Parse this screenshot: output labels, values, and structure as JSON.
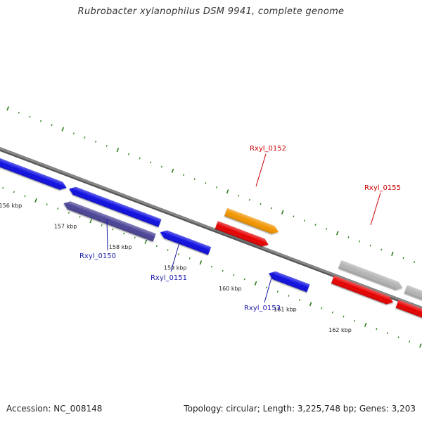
{
  "title": "Rubrobacter xylanophilus DSM 9941, complete genome",
  "footer": {
    "accession": "Accession: NC_008148",
    "topology": "Topology: circular; Length: 3,225,748 bp; Genes: 3,203"
  },
  "colors": {
    "backbone": "#888888",
    "tick_major": "#2e7d1e",
    "tick_minor": "#2e7d1e",
    "gene_blue": "#1010e0",
    "gene_purple": "#4b4496",
    "gene_orange": "#f29400",
    "gene_red": "#e60000",
    "gene_gray": "#b4b4b4",
    "label_blue": "#1a1aa8",
    "label_red": "#cc0000"
  },
  "scale": {
    "unit": "kbp",
    "tick_labels": [
      {
        "kbp": 156,
        "text": "156 kbp"
      },
      {
        "kbp": 157,
        "text": "157 kbp"
      },
      {
        "kbp": 158,
        "text": "158 kbp"
      },
      {
        "kbp": 159,
        "text": "159 kbp"
      },
      {
        "kbp": 160,
        "text": "160 kbp"
      },
      {
        "kbp": 161,
        "text": "161 kbp"
      },
      {
        "kbp": 162,
        "text": "162 kbp"
      }
    ]
  },
  "genes": [
    {
      "id": "g1",
      "color": "gene_blue",
      "strand": "+"
    },
    {
      "id": "g2",
      "color": "gene_blue",
      "strand": "-"
    },
    {
      "id": "g3",
      "color": "gene_purple",
      "strand": "-"
    },
    {
      "id": "g4",
      "color": "gene_blue",
      "strand": "-"
    },
    {
      "id": "g5",
      "color": "gene_orange",
      "strand": "+"
    },
    {
      "id": "g6",
      "color": "gene_red",
      "strand": "+"
    },
    {
      "id": "g7",
      "color": "gene_blue",
      "strand": "-"
    },
    {
      "id": "g8",
      "color": "gene_gray",
      "strand": "+"
    },
    {
      "id": "g9",
      "color": "gene_gray",
      "strand": "+"
    },
    {
      "id": "g10",
      "color": "gene_red",
      "strand": "+"
    },
    {
      "id": "g11",
      "color": "gene_red",
      "strand": "+"
    }
  ],
  "gene_labels": [
    {
      "text": "Rxyl_0150",
      "color": "label_blue"
    },
    {
      "text": "Rxyl_0151",
      "color": "label_blue"
    },
    {
      "text": "Rxyl_0152",
      "color": "label_red"
    },
    {
      "text": "Rxyl_0153",
      "color": "label_blue"
    },
    {
      "text": "Rxyl_0155",
      "color": "label_red"
    }
  ]
}
